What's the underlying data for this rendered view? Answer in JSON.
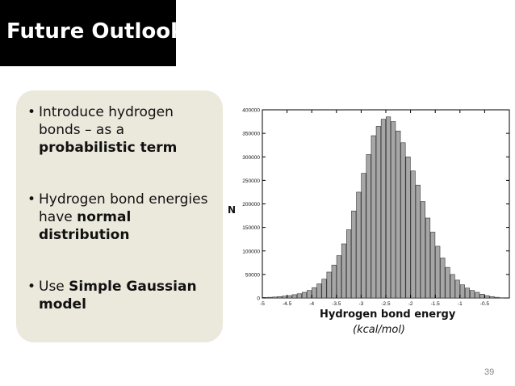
{
  "slide": {
    "title": "Future Outlook",
    "page_number": "39"
  },
  "bullets": [
    {
      "prefix": "Introduce hydrogen bonds – as a ",
      "bold": "probabilistic term",
      "suffix": ""
    },
    {
      "prefix": "Hydrogen bond energies have ",
      "bold": "normal distribution",
      "suffix": ""
    },
    {
      "prefix": "Use ",
      "bold": "Simple Gaussian model",
      "suffix": ""
    }
  ],
  "chart_data": {
    "type": "bar",
    "title": "",
    "xlabel": "Hydrogen bond energy",
    "xlabel_unit": "(kcal/mol)",
    "ylabel": "N",
    "xlim": [
      -5,
      0
    ],
    "ylim": [
      0,
      400000
    ],
    "grid": false,
    "xticks": [
      -5,
      -4.5,
      -4,
      -3.5,
      -3,
      -2.5,
      -2,
      -1.5,
      -1,
      -0.5
    ],
    "xtick_labels": [
      "-5",
      "-4.5",
      "-4",
      "-3.5",
      "-3",
      "-2.5",
      "-2",
      "-1.5",
      "-1",
      "-0.5"
    ],
    "yticks": [
      0,
      50000,
      100000,
      150000,
      200000,
      250000,
      300000,
      350000,
      400000
    ],
    "ytick_labels": [
      "0",
      "50000",
      "100000",
      "150000",
      "200000",
      "250000",
      "300000",
      "350000",
      "400000"
    ],
    "bin_width": 0.1,
    "bin_centers": [
      -4.95,
      -4.85,
      -4.75,
      -4.65,
      -4.55,
      -4.45,
      -4.35,
      -4.25,
      -4.15,
      -4.05,
      -3.95,
      -3.85,
      -3.75,
      -3.65,
      -3.55,
      -3.45,
      -3.35,
      -3.25,
      -3.15,
      -3.05,
      -2.95,
      -2.85,
      -2.75,
      -2.65,
      -2.55,
      -2.45,
      -2.35,
      -2.25,
      -2.15,
      -2.05,
      -1.95,
      -1.85,
      -1.75,
      -1.65,
      -1.55,
      -1.45,
      -1.35,
      -1.25,
      -1.15,
      -1.05,
      -0.95,
      -0.85,
      -0.75,
      -0.65,
      -0.55,
      -0.45,
      -0.35,
      -0.25,
      -0.15
    ],
    "values": [
      1000,
      1500,
      2000,
      3000,
      4000,
      5000,
      7000,
      9000,
      12000,
      16000,
      22000,
      30000,
      40000,
      55000,
      70000,
      90000,
      115000,
      145000,
      185000,
      225000,
      265000,
      305000,
      345000,
      365000,
      380000,
      385000,
      375000,
      355000,
      330000,
      300000,
      270000,
      240000,
      205000,
      170000,
      140000,
      110000,
      85000,
      65000,
      50000,
      38000,
      28000,
      21000,
      16000,
      12000,
      8000,
      5000,
      3000,
      1500,
      500
    ]
  }
}
